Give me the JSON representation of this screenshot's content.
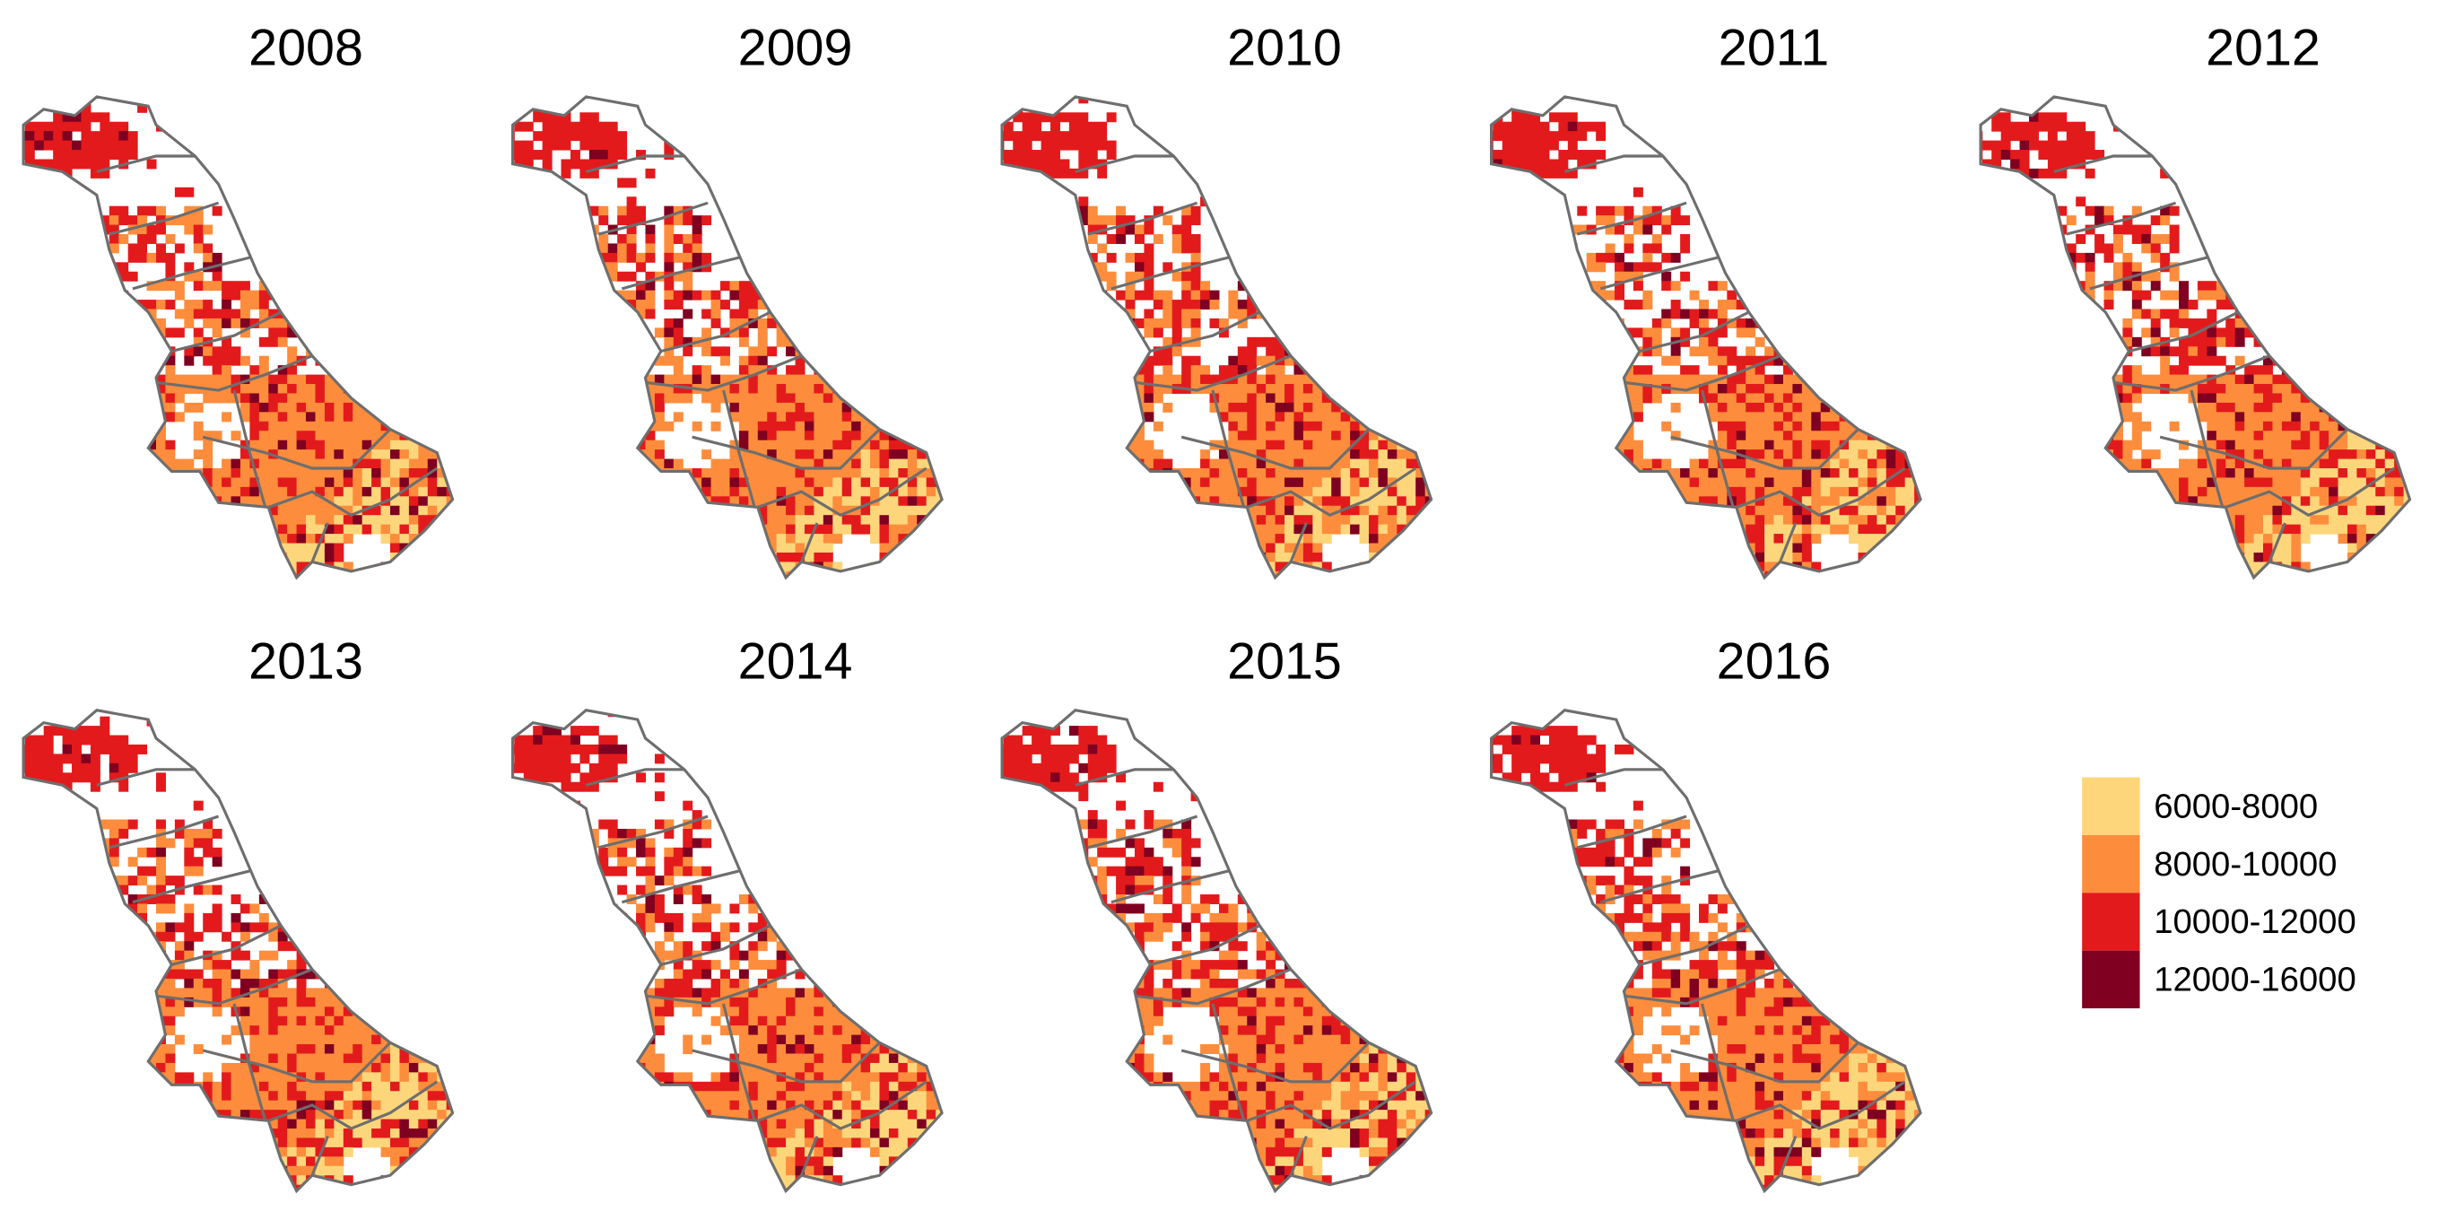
{
  "panels": [
    {
      "title": "2008"
    },
    {
      "title": "2009"
    },
    {
      "title": "2010"
    },
    {
      "title": "2011"
    },
    {
      "title": "2012"
    },
    {
      "title": "2013"
    },
    {
      "title": "2014"
    },
    {
      "title": "2015"
    },
    {
      "title": "2016"
    }
  ],
  "legend": {
    "items": [
      {
        "label": "6000-8000",
        "color": "#fdd67b"
      },
      {
        "label": "8000-10000",
        "color": "#fd8d3c"
      },
      {
        "label": "10000-12000",
        "color": "#e31a1c"
      },
      {
        "label": "12000-16000",
        "color": "#7f0020"
      }
    ]
  }
}
